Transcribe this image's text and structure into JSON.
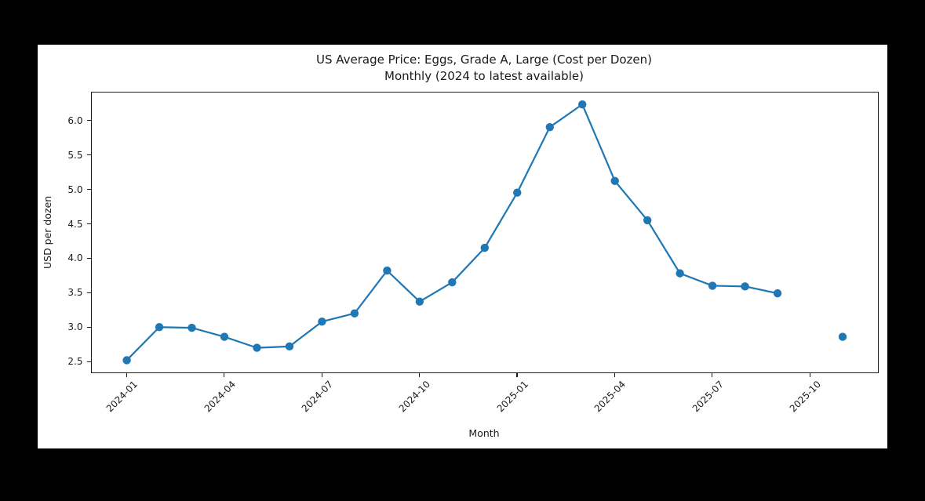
{
  "window": {
    "background_color": "#000000",
    "figure_background_color": "#ffffff"
  },
  "chart_data": {
    "type": "line",
    "title": "US Average Price: Eggs, Grade A, Large (Cost per Dozen)",
    "subtitle": "Monthly (2024 to latest available)",
    "xlabel": "Month",
    "ylabel": "USD per dozen",
    "line_color": "#1f77b4",
    "marker": "circle",
    "grid": false,
    "legend": "none",
    "x": [
      "2024-01",
      "2024-02",
      "2024-03",
      "2024-04",
      "2024-05",
      "2024-06",
      "2024-07",
      "2024-08",
      "2024-09",
      "2024-10",
      "2024-11",
      "2024-12",
      "2025-01",
      "2025-02",
      "2025-03",
      "2025-04",
      "2025-05",
      "2025-06",
      "2025-07",
      "2025-08",
      "2025-09",
      "2025-10",
      "2025-11"
    ],
    "values": [
      2.52,
      3.0,
      2.99,
      2.86,
      2.7,
      2.72,
      3.08,
      3.2,
      3.82,
      3.37,
      3.65,
      4.15,
      4.95,
      5.9,
      6.23,
      5.12,
      4.55,
      3.78,
      3.6,
      3.59,
      3.49,
      null,
      2.86
    ],
    "x_tick_indices": [
      0,
      3,
      6,
      9,
      12,
      15,
      18,
      21
    ],
    "x_tick_labels": [
      "2024-01",
      "2024-04",
      "2024-07",
      "2024-10",
      "2025-01",
      "2025-04",
      "2025-07",
      "2025-10"
    ],
    "y_tick_labels": [
      "2.5",
      "3.0",
      "3.5",
      "4.0",
      "4.5",
      "5.0",
      "5.5",
      "6.0"
    ],
    "y_tick_values": [
      2.5,
      3.0,
      3.5,
      4.0,
      4.5,
      5.0,
      5.5,
      6.0
    ],
    "xlim": [
      -1.104,
      23.104
    ],
    "ylim": [
      2.334,
      6.416
    ]
  }
}
